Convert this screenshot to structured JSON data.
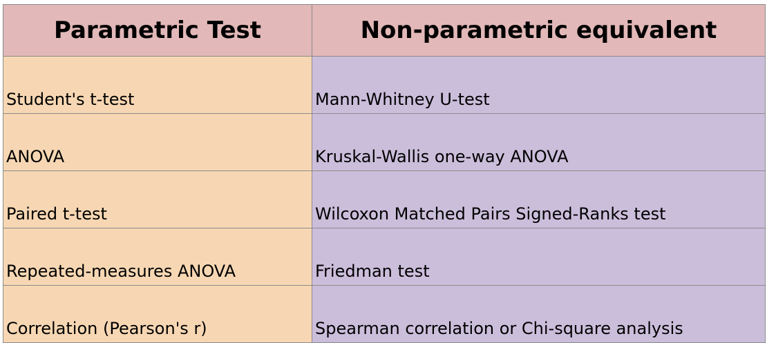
{
  "table": {
    "header": [
      "Parametric Test",
      "Non-parametric equivalent"
    ],
    "rows": [
      [
        "Student's t-test",
        "Mann-Whitney U-test"
      ],
      [
        "ANOVA",
        "Kruskal-Wallis one-way ANOVA"
      ],
      [
        "Paired t-test",
        "Wilcoxon Matched Pairs Signed-Ranks test"
      ],
      [
        "Repeated-measures ANOVA",
        "Friedman test"
      ],
      [
        "Correlation (Pearson's r)",
        "Spearman correlation or Chi-square analysis"
      ]
    ]
  }
}
